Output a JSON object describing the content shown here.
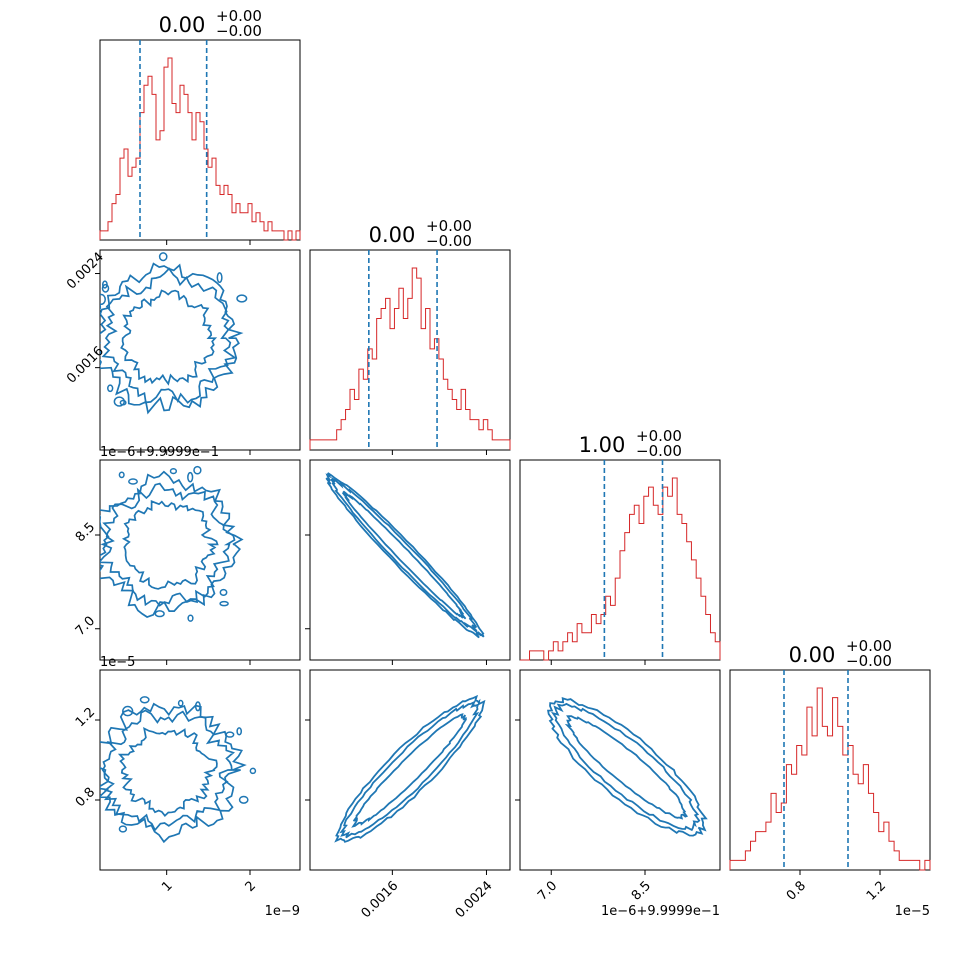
{
  "chart_data": {
    "type": "corner",
    "colors": {
      "hist": "#d62728",
      "contour": "#1f77b4",
      "quantile": "#1f77b4",
      "axes": "#000000"
    },
    "parameters": [
      {
        "title_main": "0.00",
        "title_sup": "+0.00",
        "title_sub": "−0.00",
        "xticks": [
          {
            "value": 1,
            "label": "1"
          },
          {
            "value": 2,
            "label": "2"
          }
        ],
        "yticks": [],
        "offset_label": "1e−9",
        "lim": [
          0.2,
          2.6
        ]
      },
      {
        "title_main": "0.00",
        "title_sup": "+0.00",
        "title_sub": "−0.00",
        "xticks": [
          {
            "value": 0.0016,
            "label": "0.0016"
          },
          {
            "value": 0.0024,
            "label": "0.0024"
          }
        ],
        "yticks": [
          {
            "value": 0.0016,
            "label": "0.0016"
          },
          {
            "value": 0.0024,
            "label": "0.0024"
          }
        ],
        "offset_label": "",
        "lim": [
          0.0009,
          0.0026
        ]
      },
      {
        "title_main": "1.00",
        "title_sup": "+0.00",
        "title_sub": "−0.00",
        "xticks": [
          {
            "value": 7.0,
            "label": "7.0"
          },
          {
            "value": 8.5,
            "label": "8.5"
          }
        ],
        "yticks": [
          {
            "value": 7.0,
            "label": "7.0"
          },
          {
            "value": 8.5,
            "label": "8.5"
          }
        ],
        "offset_label": "1e−6+9.9999e−1",
        "lim": [
          6.5,
          9.7
        ]
      },
      {
        "title_main": "0.00",
        "title_sup": "+0.00",
        "title_sub": "−0.00",
        "xticks": [
          {
            "value": 0.8,
            "label": "0.8"
          },
          {
            "value": 1.2,
            "label": "1.2"
          }
        ],
        "yticks": [
          {
            "value": 0.8,
            "label": "0.8"
          },
          {
            "value": 1.2,
            "label": "1.2"
          }
        ],
        "offset_label": "1e−5",
        "lim": [
          0.45,
          1.45
        ]
      }
    ],
    "histograms": [
      {
        "quantiles": [
          0.68,
          1.48
        ],
        "counts": [
          1,
          1,
          2,
          4,
          5,
          9,
          10,
          7,
          8,
          9,
          14,
          17,
          18,
          16,
          11,
          12,
          19,
          20,
          15,
          14,
          17,
          16,
          14,
          11,
          14,
          13,
          10,
          8,
          9,
          6,
          5,
          6,
          5,
          3,
          4,
          3,
          3,
          4,
          2,
          3,
          2,
          1,
          2,
          1,
          1,
          1,
          0,
          1,
          0,
          1
        ]
      },
      {
        "quantiles": [
          0.0014,
          0.00198
        ],
        "counts": [
          1,
          1,
          1,
          1,
          1,
          1,
          2,
          3,
          4,
          6,
          5,
          8,
          7,
          10,
          9,
          13,
          14,
          15,
          12,
          14,
          16,
          13,
          15,
          18,
          17,
          12,
          14,
          10,
          11,
          9,
          7,
          6,
          5,
          4,
          6,
          4,
          3,
          3,
          2,
          3,
          2,
          1,
          1,
          1,
          1
        ]
      },
      {
        "quantiles": [
          7.85,
          8.78
        ],
        "counts": [
          0,
          0,
          1,
          1,
          1,
          0,
          1,
          2,
          1,
          2,
          3,
          2,
          4,
          3,
          3,
          5,
          4,
          5,
          7,
          6,
          9,
          12,
          14,
          16,
          17,
          15,
          18,
          19,
          17,
          16,
          19,
          18,
          20,
          16,
          15,
          13,
          11,
          9,
          7,
          5,
          3,
          2
        ]
      },
      {
        "quantiles": [
          0.72,
          1.04
        ],
        "counts": [
          1,
          1,
          1,
          2,
          3,
          4,
          4,
          5,
          8,
          6,
          7,
          11,
          10,
          13,
          12,
          17,
          14,
          19,
          15,
          14,
          18,
          15,
          12,
          13,
          10,
          9,
          11,
          8,
          6,
          4,
          5,
          3,
          2,
          1,
          1,
          1,
          1,
          0,
          1
        ]
      }
    ],
    "pairs": [
      {
        "row": 1,
        "col": 0,
        "shape": "blob",
        "center": [
          1.0,
          0.00185
        ],
        "radius": [
          0.85,
          0.0006
        ]
      },
      {
        "row": 2,
        "col": 0,
        "shape": "blob",
        "center": [
          1.0,
          8.35
        ],
        "radius": [
          0.85,
          1.05
        ]
      },
      {
        "row": 2,
        "col": 1,
        "shape": "line",
        "from": [
          0.00105,
          9.45
        ],
        "to": [
          0.00235,
          6.9
        ],
        "width": 0.12
      },
      {
        "row": 3,
        "col": 0,
        "shape": "blob",
        "center": [
          1.0,
          0.95
        ],
        "radius": [
          0.85,
          0.32
        ]
      },
      {
        "row": 3,
        "col": 1,
        "shape": "line",
        "from": [
          0.00115,
          0.6
        ],
        "to": [
          0.00235,
          1.3
        ],
        "width": 0.22
      },
      {
        "row": 3,
        "col": 2,
        "shape": "line",
        "from": [
          7.0,
          1.28
        ],
        "to": [
          9.4,
          0.65
        ],
        "width": 0.3
      }
    ]
  }
}
